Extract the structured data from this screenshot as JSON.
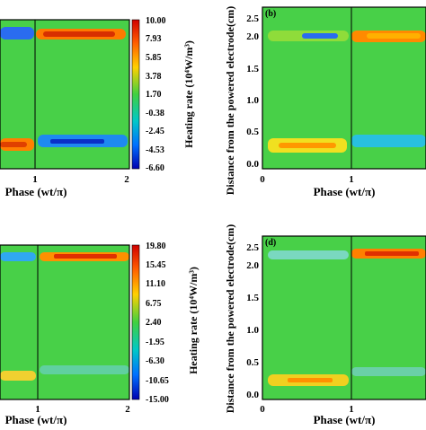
{
  "chart_data": [
    {
      "type": "heatmap",
      "panel_label": "",
      "xlabel": "Phase (wt/π)",
      "ylabel": "",
      "x_ticks": [
        "1",
        "2"
      ],
      "colorbar": {
        "title": "Heating rate (10⁴W/m³)",
        "ticks": [
          "10.00",
          "7.93",
          "5.85",
          "3.78",
          "1.70",
          "-0.38",
          "-2.45",
          "-4.53",
          "-6.60"
        ]
      },
      "colors": {
        "min": "#0000cc",
        "mid": "#2ecc2e",
        "max": "#cc0000",
        "background": "#44d044"
      }
    },
    {
      "type": "heatmap",
      "panel_label": "(b)",
      "xlabel": "Phase (wt/π)",
      "ylabel": "Distance from the powered electrode(cm)",
      "x_ticks": [
        "0",
        "1"
      ],
      "y_ticks": [
        "2.5",
        "2.0",
        "1.5",
        "1.0",
        "0.5",
        "0.0"
      ]
    },
    {
      "type": "heatmap",
      "panel_label": "",
      "xlabel": "Phase (wt/π)",
      "ylabel": "",
      "x_ticks": [
        "1",
        "2"
      ],
      "colorbar": {
        "title": "Heating rate (10⁴W/m³)",
        "ticks": [
          "19.80",
          "15.45",
          "11.10",
          "6.75",
          "2.40",
          "-1.95",
          "-6.30",
          "-10.65",
          "-15.00"
        ]
      }
    },
    {
      "type": "heatmap",
      "panel_label": "(d)",
      "xlabel": "Phase (wt/π)",
      "ylabel": "Distance from the powered electrode(cm)",
      "x_ticks": [
        "0",
        "1"
      ],
      "y_ticks": [
        "2.5",
        "2.0",
        "1.5",
        "1.0",
        "0.5",
        "0.0"
      ]
    }
  ]
}
